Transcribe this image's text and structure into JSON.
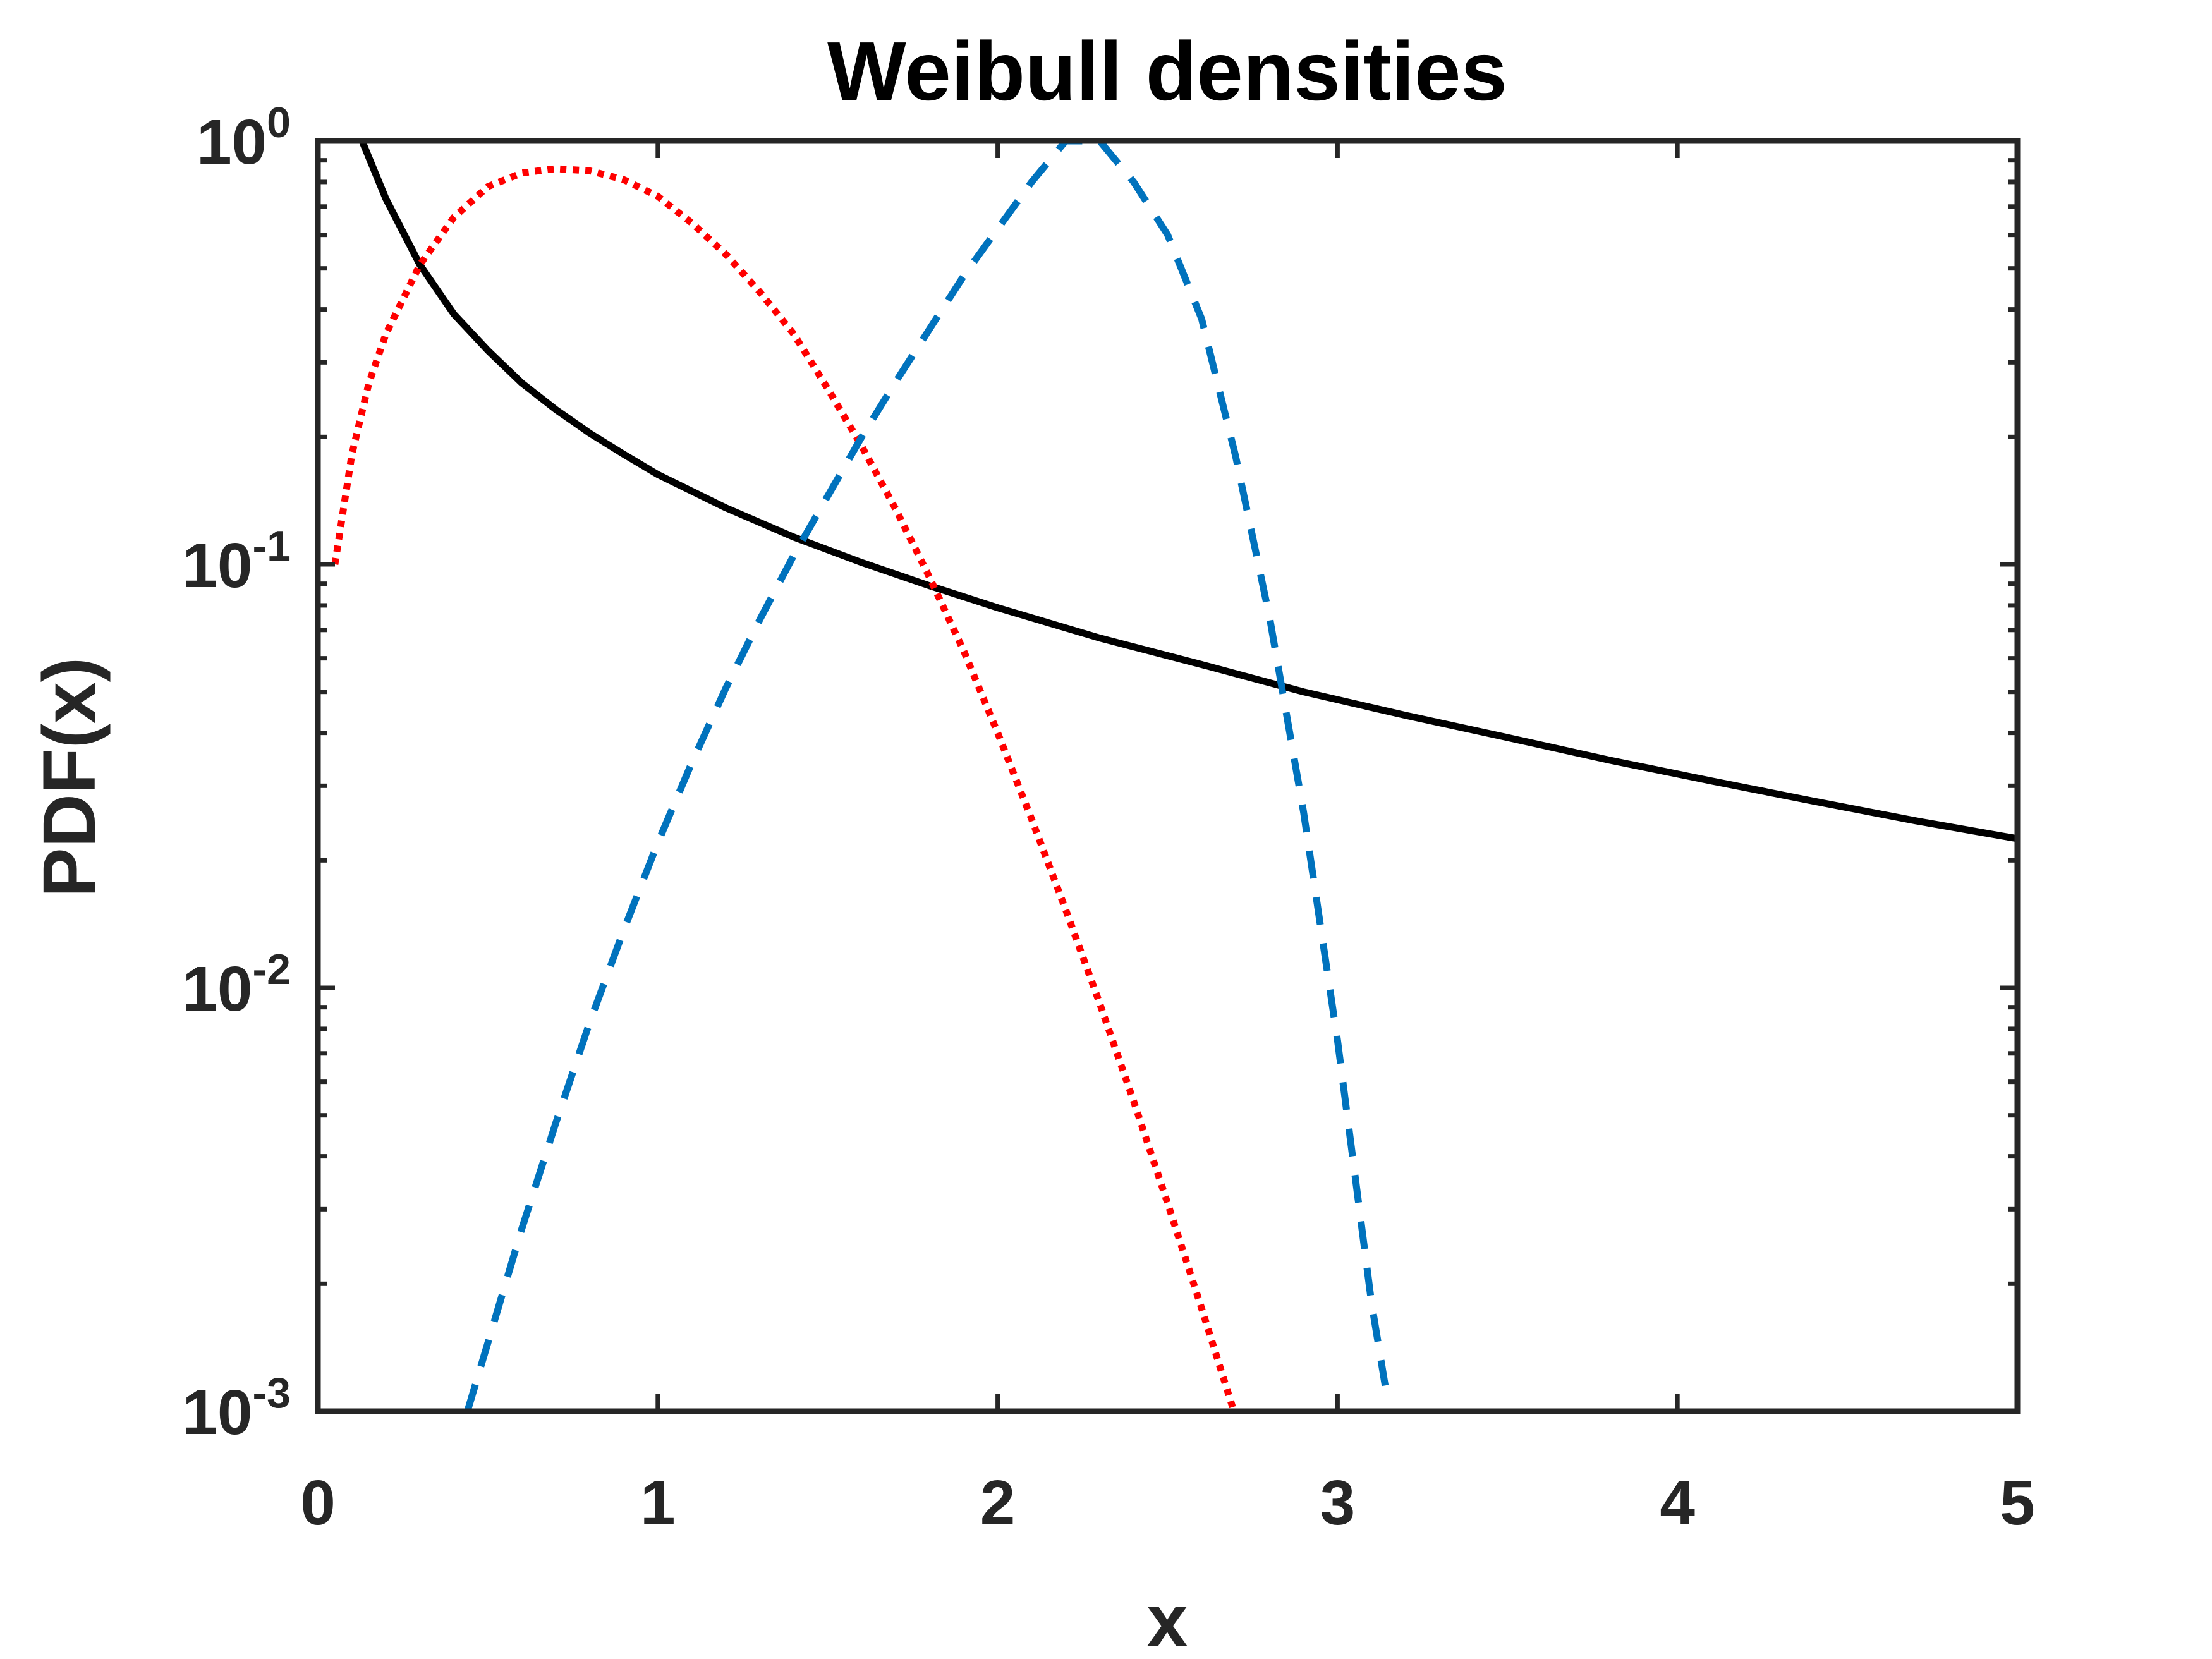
{
  "chart_data": {
    "type": "line",
    "title": "Weibull densities",
    "xlabel": "x",
    "ylabel": "PDF(x)",
    "xlim": [
      0,
      5
    ],
    "ylim": [
      0.001,
      1
    ],
    "yscale": "log",
    "grid": false,
    "legend": "none",
    "xticks": [
      "0",
      "1",
      "2",
      "3",
      "4",
      "5"
    ],
    "yticks": [
      {
        "base": "10",
        "exp": "0"
      },
      {
        "base": "10",
        "exp": "-1"
      },
      {
        "base": "10",
        "exp": "-2"
      },
      {
        "base": "10",
        "exp": "-3"
      }
    ],
    "series": [
      {
        "style": "solid",
        "color": "#000000",
        "x": [
          0.13,
          0.2,
          0.3,
          0.4,
          0.5,
          0.6,
          0.7,
          0.8,
          0.9,
          1.0,
          1.2,
          1.4,
          1.6,
          1.8,
          2.0,
          2.3,
          2.6,
          2.9,
          3.2,
          3.5,
          3.8,
          4.1,
          4.4,
          4.7,
          5.0
        ],
        "y": [
          1.0,
          0.73,
          0.51,
          0.39,
          0.32,
          0.268,
          0.232,
          0.204,
          0.182,
          0.163,
          0.136,
          0.116,
          0.101,
          0.089,
          0.079,
          0.067,
          0.058,
          0.05,
          0.044,
          0.039,
          0.0345,
          0.0308,
          0.0276,
          0.0248,
          0.0225
        ]
      },
      {
        "style": "dotted",
        "color": "#ff0000",
        "x": [
          0.05,
          0.1,
          0.15,
          0.2,
          0.3,
          0.4,
          0.5,
          0.6,
          0.7,
          0.8,
          0.9,
          1.0,
          1.1,
          1.2,
          1.3,
          1.4,
          1.5,
          1.6,
          1.7,
          1.8,
          1.9,
          2.0,
          2.1,
          2.2,
          2.3,
          2.4,
          2.5,
          2.6,
          2.7,
          2.8,
          2.94
        ],
        "y": [
          0.1,
          0.182,
          0.268,
          0.35,
          0.51,
          0.66,
          0.78,
          0.84,
          0.86,
          0.85,
          0.81,
          0.74,
          0.64,
          0.54,
          0.44,
          0.35,
          0.26,
          0.19,
          0.135,
          0.093,
          0.0625,
          0.04,
          0.025,
          0.0153,
          0.0092,
          0.0054,
          0.0031,
          0.00175,
          0.00097,
          0.00053,
          0.001
        ]
      },
      {
        "style": "dashed",
        "color": "#0072bd",
        "x": [
          0.44,
          0.5,
          0.6,
          0.7,
          0.8,
          0.9,
          1.0,
          1.1,
          1.2,
          1.3,
          1.4,
          1.5,
          1.6,
          1.7,
          1.8,
          1.9,
          2.0,
          2.1,
          2.2,
          2.3,
          2.4,
          2.5,
          2.6,
          2.7,
          2.8,
          2.9,
          3.0,
          3.1,
          3.14
        ],
        "y": [
          0.001,
          0.00145,
          0.0027,
          0.0048,
          0.0083,
          0.0137,
          0.022,
          0.034,
          0.051,
          0.074,
          0.105,
          0.145,
          0.2,
          0.27,
          0.36,
          0.48,
          0.62,
          0.8,
          1.0,
          1.0,
          0.8,
          0.6,
          0.38,
          0.18,
          0.075,
          0.026,
          0.0075,
          0.0018,
          0.00115
        ]
      }
    ]
  }
}
